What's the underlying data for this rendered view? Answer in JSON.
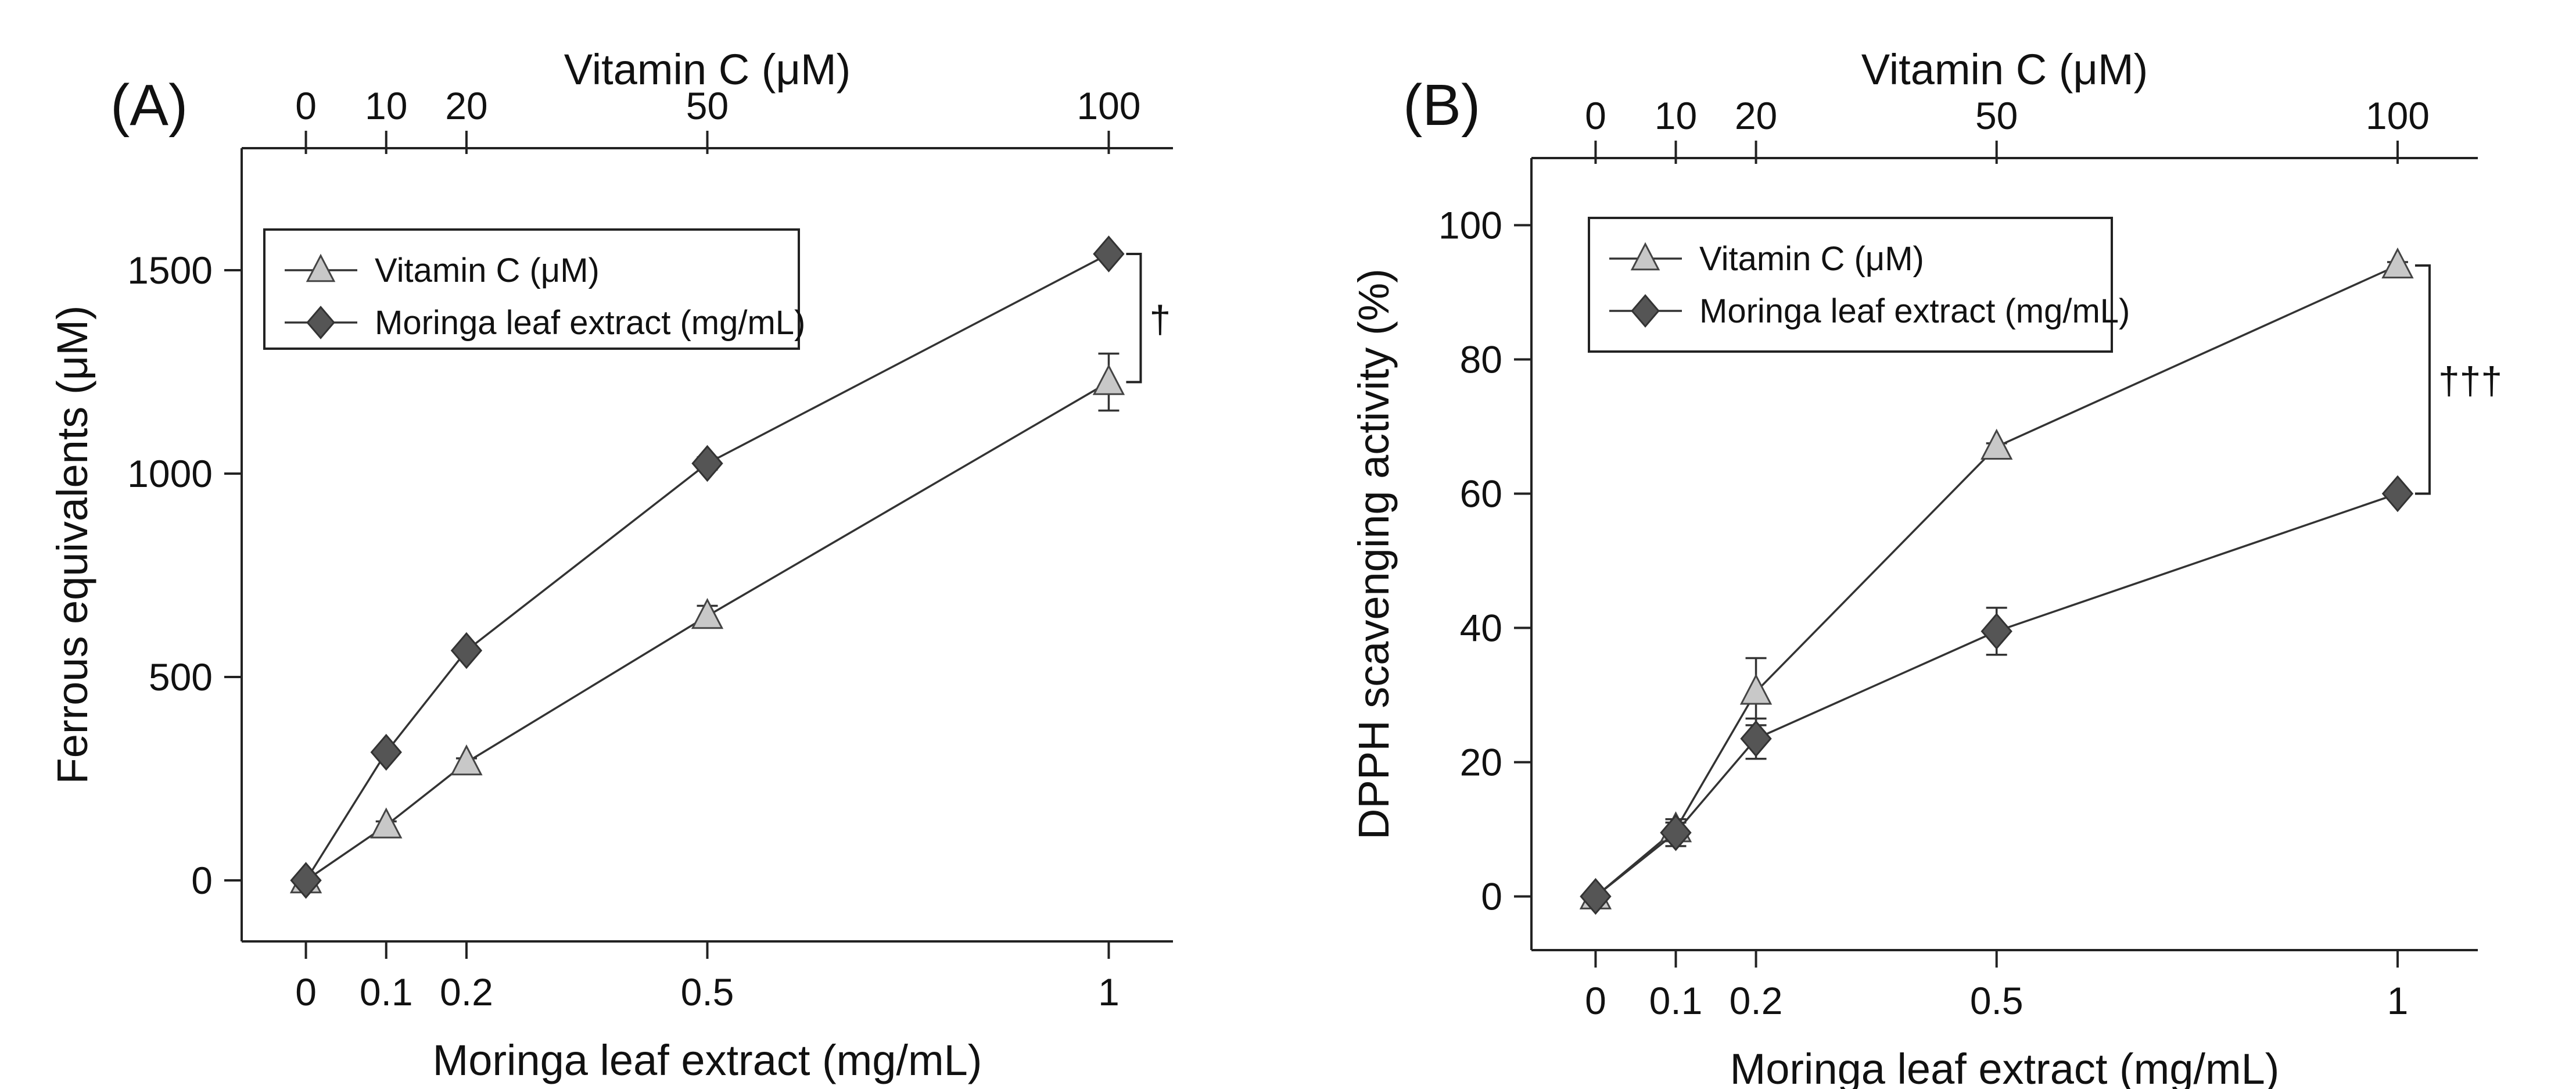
{
  "chart_data": [
    {
      "type": "line",
      "panel_label": "(A)",
      "title": "",
      "xlabel": "Moringa leaf extract (mg/mL)",
      "x2label": "Vitamin C (μM)",
      "ylabel": "Ferrous equivalents (μM)",
      "x": [
        0,
        0.1,
        0.2,
        0.5,
        1
      ],
      "xticks": [
        "0",
        "0.1",
        "0.2",
        "0.5",
        "1"
      ],
      "x2ticks": [
        "0",
        "10",
        "20",
        "50",
        "100"
      ],
      "yticks": [
        0,
        500,
        1000,
        1500
      ],
      "ylim": [
        -150,
        1800
      ],
      "xlim": [
        -0.08,
        1.08
      ],
      "legend_position": "top-left",
      "series": [
        {
          "name": "Vitamin C (μM)",
          "marker": "triangle",
          "color": "#c8c8c8",
          "values": [
            0,
            135,
            290,
            650,
            1225
          ],
          "errors": [
            0,
            10,
            10,
            25,
            70
          ]
        },
        {
          "name": "Moringa leaf extract (mg/mL)",
          "marker": "diamond",
          "color": "#555555",
          "values": [
            0,
            315,
            565,
            1025,
            1540
          ],
          "errors": [
            0,
            5,
            5,
            15,
            5
          ]
        }
      ],
      "significance": {
        "label": "†",
        "from": 1540,
        "to": 1225
      }
    },
    {
      "type": "line",
      "panel_label": "(B)",
      "title": "",
      "xlabel": "Moringa leaf extract (mg/mL)",
      "x2label": "Vitamin C (μM)",
      "ylabel": "DPPH  scavenging activity (%)",
      "x": [
        0,
        0.1,
        0.2,
        0.5,
        1
      ],
      "xticks": [
        "0",
        "0.1",
        "0.2",
        "0.5",
        "1"
      ],
      "x2ticks": [
        "0",
        "10",
        "20",
        "50",
        "100"
      ],
      "yticks": [
        0,
        20,
        40,
        60,
        80,
        100
      ],
      "ylim": [
        -8,
        110
      ],
      "xlim": [
        -0.08,
        1.1
      ],
      "legend_position": "top-left",
      "series": [
        {
          "name": "Vitamin C (μM)",
          "marker": "triangle",
          "color": "#c8c8c8",
          "values": [
            0,
            10,
            30.5,
            67,
            94
          ],
          "errors": [
            0,
            1,
            5,
            0.5,
            0.5
          ]
        },
        {
          "name": "Moringa leaf extract (mg/mL)",
          "marker": "diamond",
          "color": "#555555",
          "values": [
            0,
            9.5,
            23.5,
            39.5,
            60
          ],
          "errors": [
            0,
            2,
            3,
            3.5,
            0.5
          ]
        }
      ],
      "significance": {
        "label": "†††",
        "from": 94,
        "to": 60
      }
    }
  ]
}
